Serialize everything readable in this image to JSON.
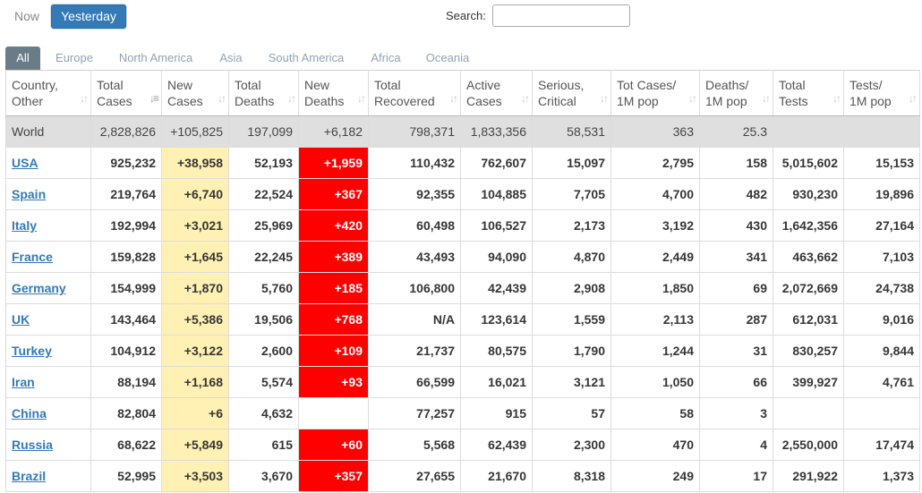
{
  "toolbar": {
    "now_label": "Now",
    "yesterday_label": "Yesterday",
    "search_label": "Search:",
    "search_value": ""
  },
  "tabs": [
    "All",
    "Europe",
    "North America",
    "Asia",
    "South America",
    "Africa",
    "Oceania"
  ],
  "active_tab": "All",
  "colors": {
    "accent": "#337ab7",
    "tab_active": "#6b7c89",
    "new_cases_highlight": "#fff0b4",
    "new_deaths_highlight": "#ff0000",
    "world_row": "#dfdfdf"
  },
  "columns": [
    {
      "line1": "Country,",
      "line2": "Other"
    },
    {
      "line1": "Total",
      "line2": "Cases"
    },
    {
      "line1": "New",
      "line2": "Cases"
    },
    {
      "line1": "Total",
      "line2": "Deaths"
    },
    {
      "line1": "New",
      "line2": "Deaths"
    },
    {
      "line1": "Total",
      "line2": "Recovered"
    },
    {
      "line1": "Active",
      "line2": "Cases"
    },
    {
      "line1": "Serious,",
      "line2": "Critical"
    },
    {
      "line1": "Tot Cases/",
      "line2": "1M pop"
    },
    {
      "line1": "Deaths/",
      "line2": "1M pop"
    },
    {
      "line1": "Total",
      "line2": "Tests"
    },
    {
      "line1": "Tests/",
      "line2": "1M pop"
    }
  ],
  "sorted_column": "Total Cases",
  "world": [
    "World",
    "2,828,826",
    "+105,825",
    "197,099",
    "+6,182",
    "798,371",
    "1,833,356",
    "58,531",
    "363",
    "25.3",
    "",
    ""
  ],
  "rows": [
    [
      "USA",
      "925,232",
      "+38,958",
      "52,193",
      "+1,959",
      "110,432",
      "762,607",
      "15,097",
      "2,795",
      "158",
      "5,015,602",
      "15,153"
    ],
    [
      "Spain",
      "219,764",
      "+6,740",
      "22,524",
      "+367",
      "92,355",
      "104,885",
      "7,705",
      "4,700",
      "482",
      "930,230",
      "19,896"
    ],
    [
      "Italy",
      "192,994",
      "+3,021",
      "25,969",
      "+420",
      "60,498",
      "106,527",
      "2,173",
      "3,192",
      "430",
      "1,642,356",
      "27,164"
    ],
    [
      "France",
      "159,828",
      "+1,645",
      "22,245",
      "+389",
      "43,493",
      "94,090",
      "4,870",
      "2,449",
      "341",
      "463,662",
      "7,103"
    ],
    [
      "Germany",
      "154,999",
      "+1,870",
      "5,760",
      "+185",
      "106,800",
      "42,439",
      "2,908",
      "1,850",
      "69",
      "2,072,669",
      "24,738"
    ],
    [
      "UK",
      "143,464",
      "+5,386",
      "19,506",
      "+768",
      "N/A",
      "123,614",
      "1,559",
      "2,113",
      "287",
      "612,031",
      "9,016"
    ],
    [
      "Turkey",
      "104,912",
      "+3,122",
      "2,600",
      "+109",
      "21,737",
      "80,575",
      "1,790",
      "1,244",
      "31",
      "830,257",
      "9,844"
    ],
    [
      "Iran",
      "88,194",
      "+1,168",
      "5,574",
      "+93",
      "66,599",
      "16,021",
      "3,121",
      "1,050",
      "66",
      "399,927",
      "4,761"
    ],
    [
      "China",
      "82,804",
      "+6",
      "4,632",
      "",
      "77,257",
      "915",
      "57",
      "58",
      "3",
      "",
      ""
    ],
    [
      "Russia",
      "68,622",
      "+5,849",
      "615",
      "+60",
      "5,568",
      "62,439",
      "2,300",
      "470",
      "4",
      "2,550,000",
      "17,474"
    ],
    [
      "Brazil",
      "52,995",
      "+3,503",
      "3,670",
      "+357",
      "27,655",
      "21,670",
      "8,318",
      "249",
      "17",
      "291,922",
      "1,373"
    ]
  ]
}
